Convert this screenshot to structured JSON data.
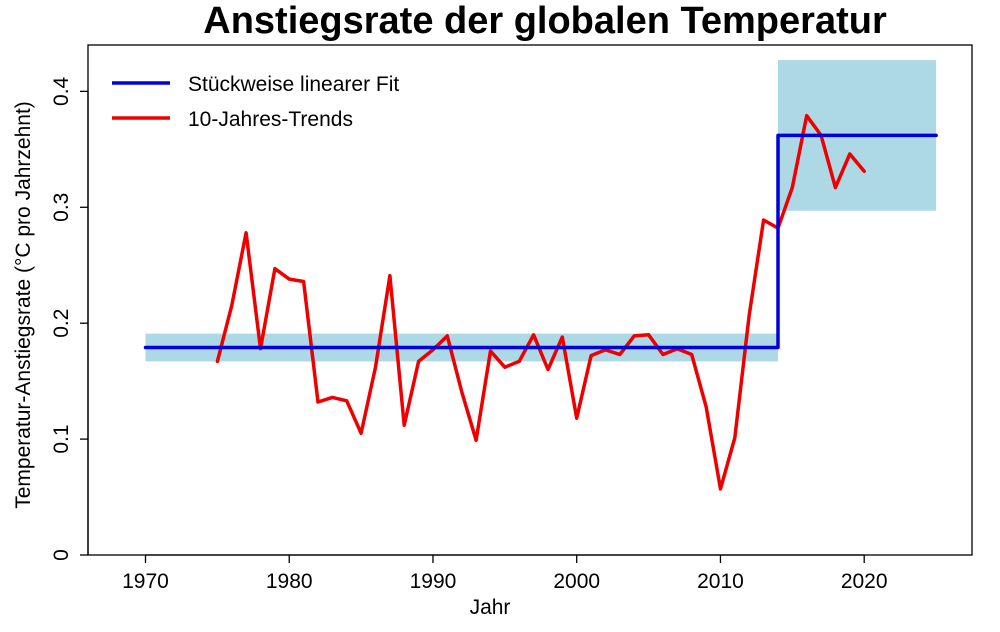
{
  "chart_data": {
    "type": "line",
    "title": "Anstiegsrate der globalen Temperatur",
    "xlabel": "Jahr",
    "ylabel": "Temperatur-Anstiegsrate (°C pro Jahrzehnt)",
    "xlim": [
      1966,
      2027.5
    ],
    "ylim": [
      0,
      0.44
    ],
    "x_ticks": [
      1970,
      1980,
      1990,
      2000,
      2010,
      2020
    ],
    "y_ticks": [
      0,
      0.1,
      0.2,
      0.3,
      0.4
    ],
    "y_tick_labels": [
      "0",
      "0.1",
      "0.2",
      "0.3",
      "0.4"
    ],
    "legend": [
      {
        "label": "Stückweise linearer Fit",
        "color": "#0000dd"
      },
      {
        "label": "10-Jahres-Trends",
        "color": "#ee0000"
      }
    ],
    "bands": [
      {
        "x_start": 1970,
        "x_end": 2014,
        "y_low": 0.167,
        "y_high": 0.191,
        "color": "#add8e6"
      },
      {
        "x_start": 2014,
        "x_end": 2025,
        "y_low": 0.297,
        "y_high": 0.427,
        "color": "#add8e6"
      }
    ],
    "series": [
      {
        "name": "Stückweise linearer Fit",
        "color": "#0000dd",
        "x": [
          1970,
          2014,
          2014,
          2025
        ],
        "y": [
          0.179,
          0.179,
          0.362,
          0.362
        ]
      },
      {
        "name": "10-Jahres-Trends",
        "color": "#ee0000",
        "x": [
          1975,
          1976,
          1977,
          1978,
          1979,
          1980,
          1981,
          1982,
          1983,
          1984,
          1985,
          1986,
          1987,
          1988,
          1989,
          1990,
          1991,
          1992,
          1993,
          1994,
          1995,
          1996,
          1997,
          1998,
          1999,
          2000,
          2001,
          2002,
          2003,
          2004,
          2005,
          2006,
          2007,
          2008,
          2009,
          2010,
          2011,
          2012,
          2013,
          2014,
          2015,
          2016,
          2017,
          2018,
          2019,
          2020
        ],
        "y": [
          0.167,
          0.215,
          0.278,
          0.178,
          0.247,
          0.238,
          0.236,
          0.132,
          0.136,
          0.133,
          0.105,
          0.162,
          0.241,
          0.112,
          0.167,
          0.177,
          0.189,
          0.141,
          0.099,
          0.176,
          0.162,
          0.167,
          0.19,
          0.16,
          0.188,
          0.118,
          0.172,
          0.177,
          0.173,
          0.189,
          0.19,
          0.173,
          0.178,
          0.173,
          0.128,
          0.057,
          0.101,
          0.207,
          0.289,
          0.282,
          0.317,
          0.379,
          0.362,
          0.317,
          0.346,
          0.331
        ]
      }
    ]
  }
}
